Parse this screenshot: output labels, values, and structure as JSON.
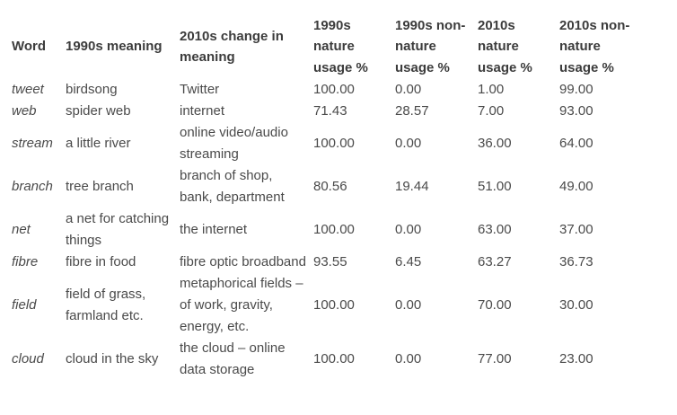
{
  "headers": [
    "Word",
    "1990s meaning",
    "2010s change in meaning",
    "1990s nature usage %",
    "1990s non-nature usage %",
    "2010s nature usage %",
    "2010s non-nature usage %"
  ],
  "rows": [
    [
      "tweet",
      "birdsong",
      "Twitter",
      "100.00",
      "0.00",
      "1.00",
      "99.00"
    ],
    [
      "web",
      "spider web",
      "internet",
      "71.43",
      "28.57",
      "7.00",
      "93.00"
    ],
    [
      "stream",
      "a little river",
      "online video/audio streaming",
      "100.00",
      "0.00",
      "36.00",
      "64.00"
    ],
    [
      "branch",
      "tree branch",
      "branch of shop, bank, department",
      "80.56",
      "19.44",
      "51.00",
      "49.00"
    ],
    [
      "net",
      "a net for catching things",
      "the internet",
      "100.00",
      "0.00",
      "63.00",
      "37.00"
    ],
    [
      "fibre",
      "fibre in food",
      "fibre optic broadband",
      "93.55",
      "6.45",
      "63.27",
      "36.73"
    ],
    [
      "field",
      "field of grass, farmland etc.",
      "metaphorical fields – of work, gravity, energy, etc.",
      "100.00",
      "0.00",
      "70.00",
      "30.00"
    ],
    [
      "cloud",
      "cloud in the sky",
      "the cloud – online data storage",
      "100.00",
      "0.00",
      "77.00",
      "23.00"
    ]
  ]
}
